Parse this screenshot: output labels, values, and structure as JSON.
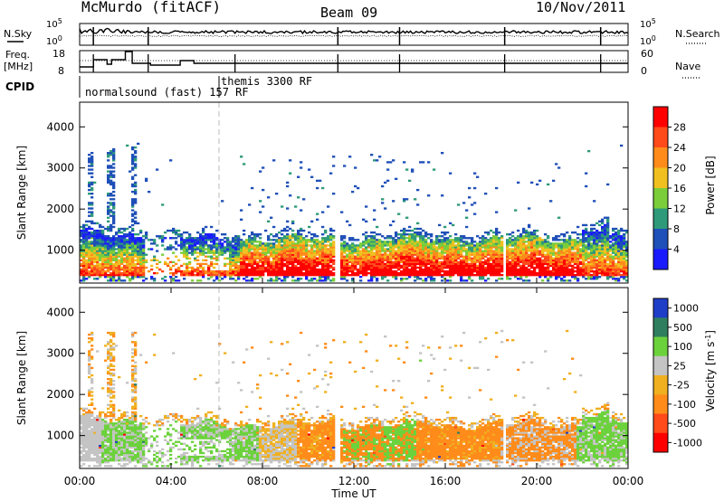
{
  "header": {
    "title": "McMurdo (fitACF)",
    "beam": "Beam 09",
    "date": "10/Nov/2011"
  },
  "noise_panel": {
    "left_label": "N.Sky",
    "right_label": "N.Search",
    "left_ticks": [
      "10^5",
      "10^0"
    ],
    "right_ticks": [
      "10^5",
      "10^0"
    ]
  },
  "freq_panel": {
    "left_label_1": "Freq.",
    "left_label_2": "[MHz]",
    "right_label": "Nave",
    "left_ticks": [
      "18",
      "8"
    ],
    "right_ticks": [
      "60",
      "0"
    ]
  },
  "cpid": {
    "label": "CPID",
    "mode1": "normalsound (fast) 157 RF",
    "mode2": "themis 3300 RF"
  },
  "chart_data": [
    {
      "type": "heatmap",
      "name": "power",
      "ylabel": "Slant Range [km]",
      "yticks": [
        "1000",
        "2000",
        "3000",
        "4000"
      ],
      "ylim": [
        200,
        4600
      ],
      "xlim": [
        0,
        24
      ],
      "colorbar_label": "Power [dB]",
      "colorbar_ticks": [
        "4",
        "8",
        "12",
        "16",
        "20",
        "24",
        "28"
      ],
      "colors": [
        "#1a1aff",
        "#1f4fb8",
        "#2e9a7a",
        "#7ccd3a",
        "#f0c020",
        "#ff8c1a",
        "#ff4a1a",
        "#ff0000"
      ]
    },
    {
      "type": "heatmap",
      "name": "velocity",
      "ylabel": "Slant Range [km]",
      "yticks": [
        "1000",
        "2000",
        "3000",
        "4000"
      ],
      "ylim": [
        200,
        4600
      ],
      "xlim": [
        0,
        24
      ],
      "xticks": [
        "00:00",
        "04:00",
        "08:00",
        "12:00",
        "16:00",
        "20:00",
        "00:00"
      ],
      "xlabel": "Time UT",
      "colorbar_label": "Velocity [m s^-1]",
      "colorbar_ticks": [
        "1000",
        "500",
        "100",
        "25",
        "-25",
        "-100",
        "-500",
        "-1000"
      ],
      "colors": [
        "#1f3ec8",
        "#2f7f5f",
        "#6cd23c",
        "#c4c4c4",
        "#f0b020",
        "#ff8c1a",
        "#ff4a1a",
        "#ff0000"
      ]
    }
  ]
}
